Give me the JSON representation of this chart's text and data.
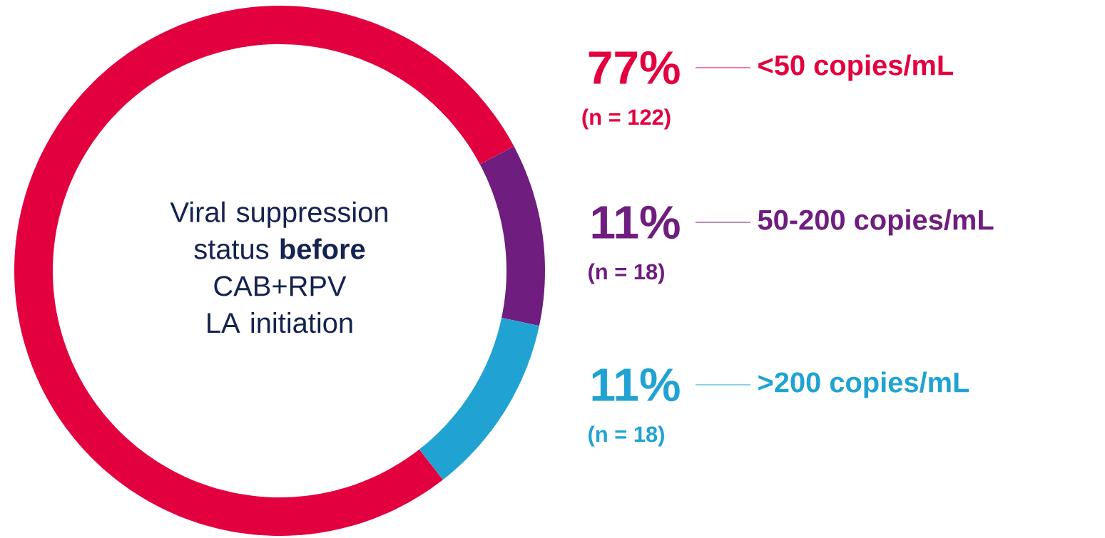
{
  "chart_data": {
    "type": "donut",
    "title": "Viral suppression status **before** CAB+RPV LA initiation",
    "categories": [
      "<50 copies/mL",
      "50-200 copies/mL",
      ">200 copies/mL"
    ],
    "values": [
      77,
      11,
      11
    ],
    "value_labels": [
      "77%",
      "11%",
      "11%"
    ],
    "legend": "right",
    "colors": [
      "#e3003f",
      "#6f1d7f",
      "#20a3d3"
    ],
    "annotations": [
      "(n = 122)",
      "(n = 18)",
      "(n = 18)"
    ]
  }
}
